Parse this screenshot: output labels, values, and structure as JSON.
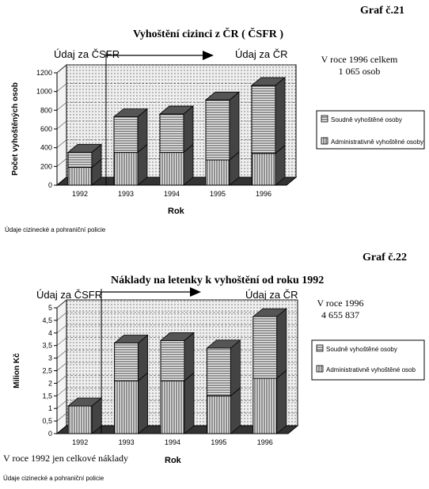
{
  "chart_data": [
    {
      "type": "bar",
      "stacked": true,
      "graf_label": "Graf č.21",
      "title": "Vyhoštění cizinci z ČR ( ČSFR )",
      "udaj_left": "Údaj za ČSFR",
      "udaj_right": "Údaj za ČR",
      "note_lines": [
        "V roce 1996 celkem",
        "1 065 osob"
      ],
      "xlabel": "Rok",
      "ylabel": "Počet vyhoštěných osob",
      "categories": [
        "1992",
        "1993",
        "1994",
        "1995",
        "1996"
      ],
      "series": [
        {
          "name": "Administrativně vyhoštěné osoby",
          "values": [
            190,
            350,
            350,
            270,
            340
          ]
        },
        {
          "name": "Soudně vyhoštěné osoby",
          "values": [
            160,
            380,
            410,
            640,
            725
          ]
        }
      ],
      "ylim": [
        0,
        1200
      ],
      "yticks": [
        "0",
        "200",
        "400",
        "600",
        "800",
        "1000",
        "1200"
      ],
      "source": "Údaje cizinecké a pohraniční policie"
    },
    {
      "type": "bar",
      "stacked": true,
      "graf_label": "Graf č.22",
      "title": "Náklady na letenky k vyhoštění od roku 1992",
      "udaj_left": "Údaj za ČSFR",
      "udaj_right": "Údaj za ČR",
      "note_lines": [
        "V roce 1996",
        "4 655 837"
      ],
      "xlabel": "Rok",
      "ylabel": "Milion Kč",
      "categories": [
        "1992",
        "1993",
        "1994",
        "1995",
        "1996"
      ],
      "series": [
        {
          "name": "Administrativně vyhoštěné osob",
          "values": [
            1.1,
            2.1,
            2.1,
            1.5,
            2.2
          ]
        },
        {
          "name": "Soudně vyhoštěné osoby",
          "values": [
            0,
            1.5,
            1.6,
            1.9,
            2.45
          ]
        }
      ],
      "ylim": [
        0,
        5
      ],
      "yticks": [
        "0",
        "0,5",
        "1",
        "1,5",
        "2",
        "2,5",
        "3",
        "3,5",
        "4",
        "4,5",
        "5"
      ],
      "footnote": "V roce 1992 jen celkové náklady",
      "source": "Údaje cizinecké a pohraniční policie"
    }
  ]
}
